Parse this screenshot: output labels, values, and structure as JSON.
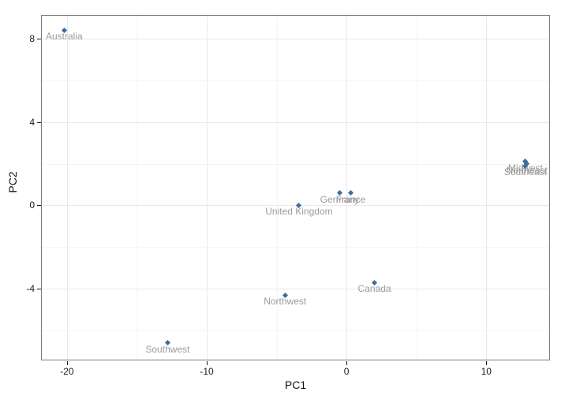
{
  "figure": {
    "background": "#ffffff",
    "panel_border_color": "#7a7a7a",
    "grid_major_color": "#e9e9e9",
    "grid_minor_color": "#f5f5f5",
    "point_color": "#3d6e9e",
    "point_label_color": "#9c9c9c",
    "axis_text_color": "#1a1a1a"
  },
  "chart_data": {
    "type": "scatter",
    "title": "",
    "xlabel": "PC1",
    "ylabel": "PC2",
    "xlim": [
      -21.8,
      14.5
    ],
    "ylim": [
      -7.4,
      9.1
    ],
    "x_ticks": [
      -20,
      -10,
      0,
      10
    ],
    "y_ticks": [
      8,
      4,
      0,
      -4
    ],
    "x_minor_ticks": [
      -15,
      -5,
      5
    ],
    "y_minor_ticks": [
      6,
      2,
      -2,
      -6
    ],
    "grid": true,
    "legend": false,
    "marker": "diamond",
    "points": [
      {
        "label": "Australia",
        "x": -20.2,
        "y": 8.4
      },
      {
        "label": "Southwest",
        "x": -12.8,
        "y": -6.6
      },
      {
        "label": "Northwest",
        "x": -4.4,
        "y": -4.3
      },
      {
        "label": "United Kingdom",
        "x": -3.4,
        "y": 0.0
      },
      {
        "label": "Germany",
        "x": -0.5,
        "y": 0.6
      },
      {
        "label": "France",
        "x": 0.3,
        "y": 0.6
      },
      {
        "label": "Canada",
        "x": 2.0,
        "y": -3.7
      },
      {
        "label": "Midwest",
        "x": 12.8,
        "y": 2.1
      },
      {
        "label": "Northeast",
        "x": 12.9,
        "y": 2.0
      },
      {
        "label": "Southeast",
        "x": 12.8,
        "y": 1.9
      }
    ]
  }
}
